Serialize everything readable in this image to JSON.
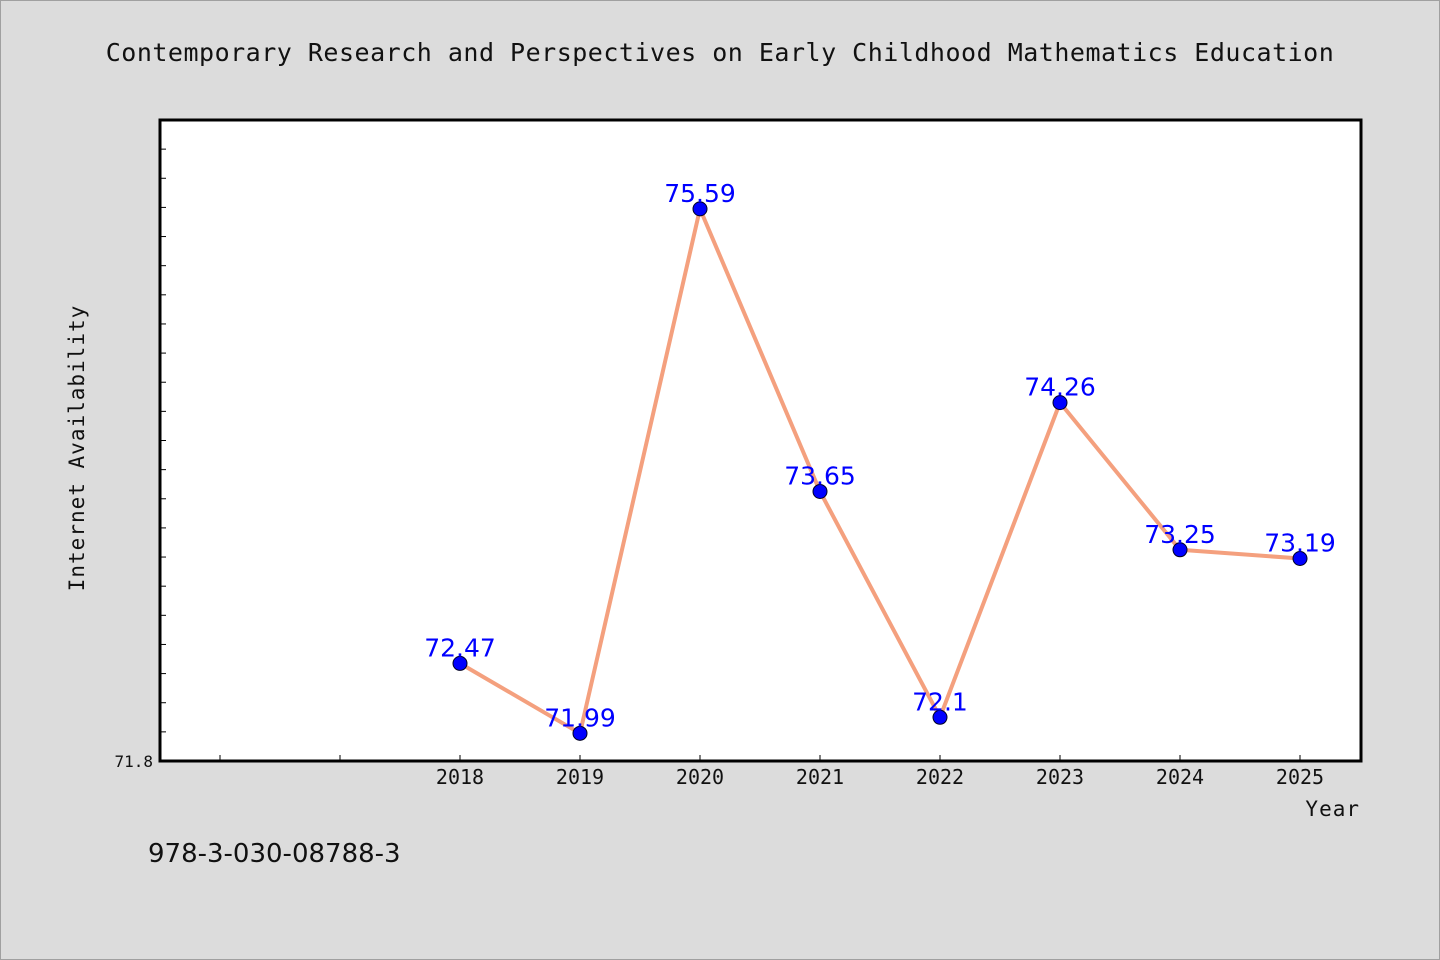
{
  "chart_data": {
    "type": "line",
    "title": "Contemporary Research and Perspectives on Early Childhood Mathematics Education",
    "xlabel": "Year",
    "ylabel": "Internet Availability",
    "categories": [
      "",
      "",
      "2018",
      "2019",
      "2020",
      "2021",
      "2022",
      "2023",
      "2024",
      "2025"
    ],
    "x": [
      "2018",
      "2019",
      "2020",
      "2021",
      "2022",
      "2023",
      "2024",
      "2025"
    ],
    "series": [
      {
        "values": [
          72.47,
          71.99,
          75.59,
          73.65,
          72.1,
          74.26,
          73.25,
          73.19
        ],
        "data_labels": [
          "72.47",
          "71.99",
          "75.59",
          "73.65",
          "72.1",
          "74.26",
          "73.25",
          "73.19"
        ],
        "color": "#f4a07e",
        "marker_color": "#0000ff"
      }
    ],
    "ylim": [
      71.8,
      76.2
    ],
    "ytick_labels": [
      "71.8"
    ],
    "grid": false,
    "legend": "none",
    "colors": {
      "background": "#dcdcdc",
      "plot_background": "#ffffff",
      "line": "#f4a07e",
      "marker": "#0000ff",
      "data_label": "#0000ff"
    }
  },
  "footer": {
    "isbn": "978-3-030-08788-3"
  }
}
